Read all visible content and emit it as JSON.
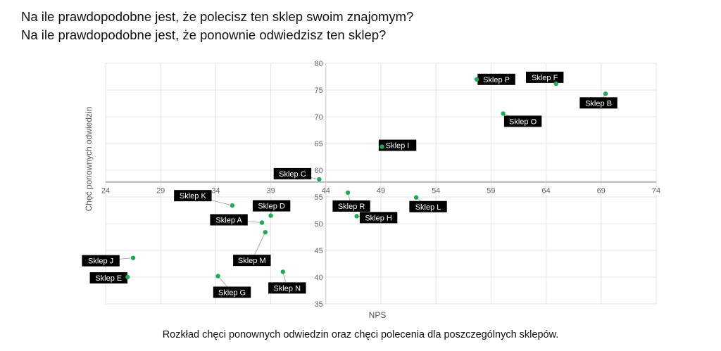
{
  "headline": {
    "line1": "Na ile prawdopodobne jest, że polecisz ten sklep swoim znajomym?",
    "line2": "Na ile prawdopodobne jest, że ponownie odwiedzisz ten sklep?"
  },
  "caption": "Rozkład chęci ponownych odwiedzin oraz chęci polecenia dla poszczególnych sklepów.",
  "chart_data": {
    "type": "scatter",
    "xlabel": "NPS",
    "ylabel": "Chęć ponownych odwiedzin",
    "xlim": [
      24,
      74
    ],
    "ylim": [
      35,
      80
    ],
    "x_ticks": [
      "24",
      "29",
      "34",
      "39",
      "44",
      "49",
      "54",
      "59",
      "64",
      "69",
      "74"
    ],
    "y_ticks": [
      "35",
      "40",
      "45",
      "50",
      "55",
      "60",
      "65",
      "70",
      "75",
      "80"
    ],
    "crosshair": {
      "x": 44,
      "y": 57.8
    },
    "grid": true,
    "point_color": "#1faa55",
    "label_bg": "#000000",
    "label_fg": "#ffffff",
    "points": [
      {
        "label": "Sklep P",
        "x": 57.7,
        "y": 77.0
      },
      {
        "label": "Sklep F",
        "x": 64.9,
        "y": 76.2
      },
      {
        "label": "Sklep B",
        "x": 69.4,
        "y": 74.3
      },
      {
        "label": "Sklep O",
        "x": 60.1,
        "y": 70.6
      },
      {
        "label": "Sklep I",
        "x": 49.1,
        "y": 64.4
      },
      {
        "label": "Sklep C",
        "x": 43.4,
        "y": 58.3
      },
      {
        "label": "Sklep R",
        "x": 46.0,
        "y": 55.8
      },
      {
        "label": "Sklep L",
        "x": 52.2,
        "y": 54.9
      },
      {
        "label": "Sklep H",
        "x": 46.8,
        "y": 51.4
      },
      {
        "label": "Sklep K",
        "x": 35.5,
        "y": 53.4
      },
      {
        "label": "Sklep D",
        "x": 39.0,
        "y": 51.5
      },
      {
        "label": "Sklep A",
        "x": 38.2,
        "y": 50.2
      },
      {
        "label": "Sklep M",
        "x": 38.5,
        "y": 48.4
      },
      {
        "label": "Sklep J",
        "x": 26.5,
        "y": 43.6
      },
      {
        "label": "Sklep E",
        "x": 26.0,
        "y": 40.0
      },
      {
        "label": "Sklep G",
        "x": 34.2,
        "y": 40.2
      },
      {
        "label": "Sklep N",
        "x": 40.1,
        "y": 41.0
      }
    ]
  }
}
